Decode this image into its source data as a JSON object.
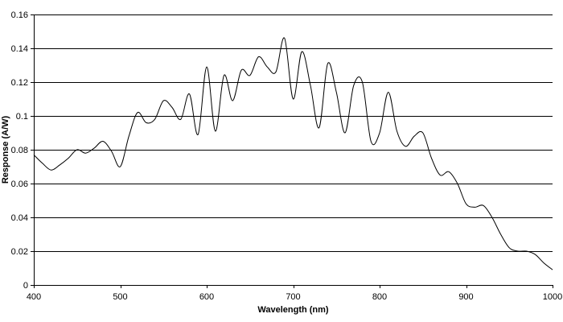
{
  "chart_data": {
    "type": "line",
    "title": "",
    "xlabel": "Wavelength (nm)",
    "ylabel": "Response (A/W)",
    "xlim": [
      400,
      1000
    ],
    "ylim": [
      0,
      0.16
    ],
    "x_ticks": [
      400,
      500,
      600,
      700,
      800,
      900,
      1000
    ],
    "x_tick_labels": [
      "400",
      "500",
      "600",
      "700",
      "800",
      "900",
      "1000"
    ],
    "y_ticks": [
      0,
      0.02,
      0.04,
      0.06,
      0.08,
      0.1,
      0.12,
      0.14,
      0.16
    ],
    "y_tick_labels": [
      "0",
      "0.02",
      "0.04",
      "0.06",
      "0.08",
      "0.1",
      "0.12",
      "0.14",
      "0.16"
    ],
    "grid": "horizontal",
    "legend": "none",
    "series": [
      {
        "color": "#000000",
        "x": [
          400,
          410,
          420,
          430,
          440,
          450,
          460,
          470,
          480,
          490,
          500,
          510,
          520,
          530,
          540,
          550,
          560,
          570,
          580,
          590,
          600,
          610,
          620,
          630,
          640,
          650,
          660,
          670,
          680,
          690,
          700,
          710,
          720,
          730,
          740,
          750,
          760,
          770,
          780,
          790,
          800,
          810,
          820,
          830,
          840,
          850,
          860,
          870,
          880,
          890,
          900,
          910,
          920,
          930,
          940,
          950,
          960,
          970,
          980,
          990,
          1000
        ],
        "values": [
          0.077,
          0.072,
          0.068,
          0.071,
          0.075,
          0.08,
          0.078,
          0.081,
          0.085,
          0.079,
          0.07,
          0.088,
          0.102,
          0.096,
          0.098,
          0.109,
          0.105,
          0.098,
          0.113,
          0.089,
          0.129,
          0.091,
          0.124,
          0.109,
          0.127,
          0.124,
          0.135,
          0.129,
          0.126,
          0.146,
          0.11,
          0.138,
          0.118,
          0.093,
          0.131,
          0.114,
          0.09,
          0.118,
          0.12,
          0.085,
          0.09,
          0.114,
          0.091,
          0.082,
          0.088,
          0.09,
          0.075,
          0.065,
          0.067,
          0.06,
          0.048,
          0.046,
          0.047,
          0.04,
          0.03,
          0.022,
          0.02,
          0.02,
          0.018,
          0.013,
          0.009
        ]
      }
    ]
  }
}
